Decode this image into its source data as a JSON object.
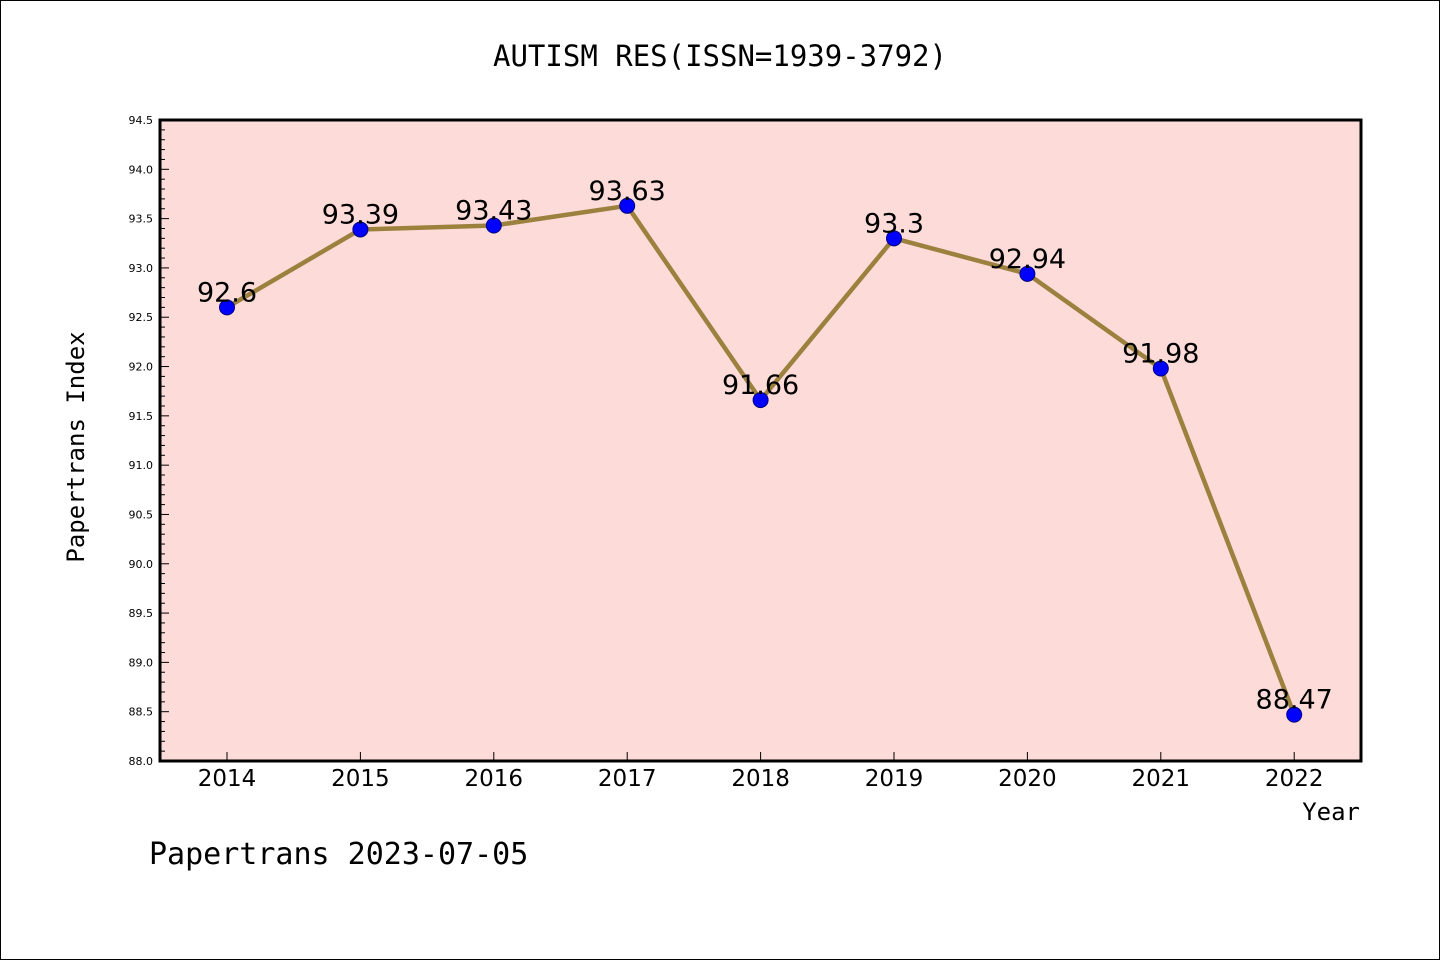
{
  "chart_data": {
    "type": "line",
    "title": "AUTISM RES(ISSN=1939-3792)",
    "xlabel": "Year",
    "ylabel": "Papertrans Index",
    "categories": [
      "2014",
      "2015",
      "2016",
      "2017",
      "2018",
      "2019",
      "2020",
      "2021",
      "2022"
    ],
    "series": [
      {
        "values": [
          92.6,
          93.39,
          93.43,
          93.63,
          91.66,
          93.3,
          92.94,
          91.98,
          88.47
        ]
      }
    ],
    "data_labels": [
      "92.6",
      "93.39",
      "93.43",
      "93.63",
      "91.66",
      "93.3",
      "92.94",
      "91.98",
      "88.47"
    ],
    "ylim": [
      88.0,
      94.5
    ],
    "yticks": [
      "88.0",
      "88.5",
      "89.0",
      "89.5",
      "90.0",
      "90.5",
      "91.0",
      "91.5",
      "92.0",
      "92.5",
      "93.0",
      "93.5",
      "94.0",
      "94.5"
    ],
    "grid": false,
    "legend": "none",
    "colors": {
      "plot_background": "#fddbd8",
      "line": "#9c803e",
      "marker_fill": "#0000ff",
      "marker_stroke": "#000080"
    }
  },
  "footer": "Papertrans 2023-07-05"
}
